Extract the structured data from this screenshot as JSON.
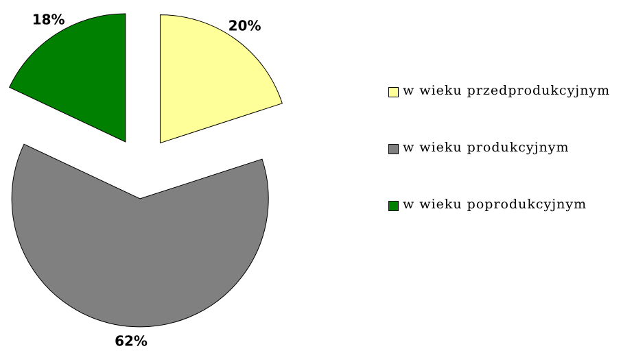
{
  "chart_data": {
    "type": "pie",
    "categories": [
      "w wieku przedprodukcyjnym",
      "w wieku produkcyjnym",
      "w wieku poprodukcyjnym"
    ],
    "values": [
      20,
      62,
      18
    ],
    "value_labels": [
      "20%",
      "62%",
      "18%"
    ],
    "colors": [
      "#ffff99",
      "#808080",
      "#008000"
    ],
    "legend": "right"
  }
}
